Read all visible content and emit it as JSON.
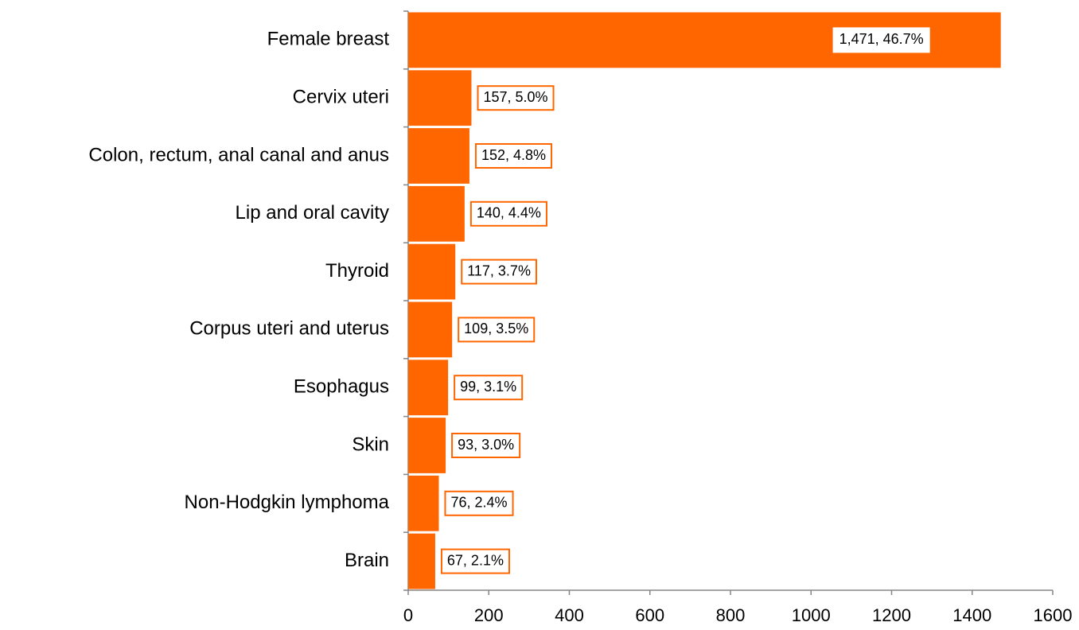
{
  "chart_data": {
    "type": "bar",
    "orientation": "horizontal",
    "categories": [
      "Female breast",
      "Cervix uteri",
      "Colon, rectum, anal canal and anus",
      "Lip and oral cavity",
      "Thyroid",
      "Corpus uteri and uterus",
      "Esophagus",
      "Skin",
      "Non-Hodgkin lymphoma",
      "Brain"
    ],
    "values": [
      1471,
      157,
      152,
      140,
      117,
      109,
      99,
      93,
      76,
      67
    ],
    "value_labels": [
      "1,471, 46.7%",
      "157, 5.0%",
      "152, 4.8%",
      "140, 4.4%",
      "117, 3.7%",
      "109, 3.5%",
      "99, 3.1%",
      "93, 3.0%",
      "76, 2.4%",
      "67, 2.1%"
    ],
    "color": "#ff6600",
    "xlim": [
      0,
      1600
    ],
    "xticks": [
      0,
      200,
      400,
      600,
      800,
      1000,
      1200,
      1400,
      1600
    ],
    "grid": false
  }
}
